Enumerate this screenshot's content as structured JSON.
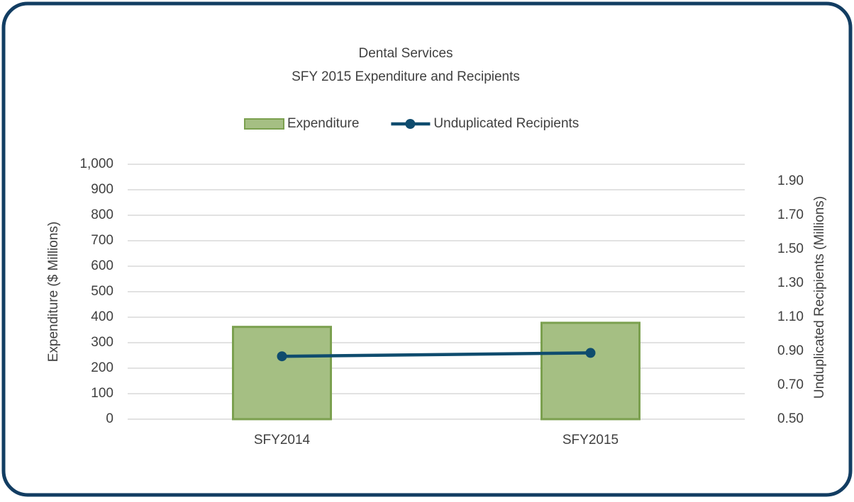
{
  "chart_data": {
    "type": "bar",
    "title": "Dental Services",
    "subtitle": "SFY 2015 Expenditure and Recipients",
    "categories": [
      "SFY2014",
      "SFY2015"
    ],
    "series": [
      {
        "name": "Expenditure",
        "type": "bar",
        "color": "#a5bf83",
        "values": [
          362,
          378
        ]
      },
      {
        "name": "Unduplicated Recipients",
        "type": "line",
        "axis": "y2",
        "color": "#0f4c6e",
        "values": [
          0.87,
          0.89
        ]
      }
    ],
    "y_label": "Expenditure ($ Millions)",
    "y2_label": "Unduplicated Recipients (Millions)",
    "ylim": [
      0,
      1000
    ],
    "yticks": [
      0,
      100,
      200,
      300,
      400,
      500,
      600,
      700,
      800,
      900,
      {
        "value": 1000,
        "label": "1,000"
      }
    ],
    "y2lim": [
      0.5,
      2.0
    ],
    "y2ticks": [
      {
        "value": 0.5,
        "label": "0.50"
      },
      {
        "value": 0.7,
        "label": "0.70"
      },
      {
        "value": 0.9,
        "label": "0.90"
      },
      {
        "value": 1.1,
        "label": "1.10"
      },
      {
        "value": 1.3,
        "label": "1.30"
      },
      {
        "value": 1.5,
        "label": "1.50"
      },
      {
        "value": 1.7,
        "label": "1.70"
      },
      {
        "value": 1.9,
        "label": "1.90"
      }
    ],
    "grid": true,
    "legend": "top"
  }
}
